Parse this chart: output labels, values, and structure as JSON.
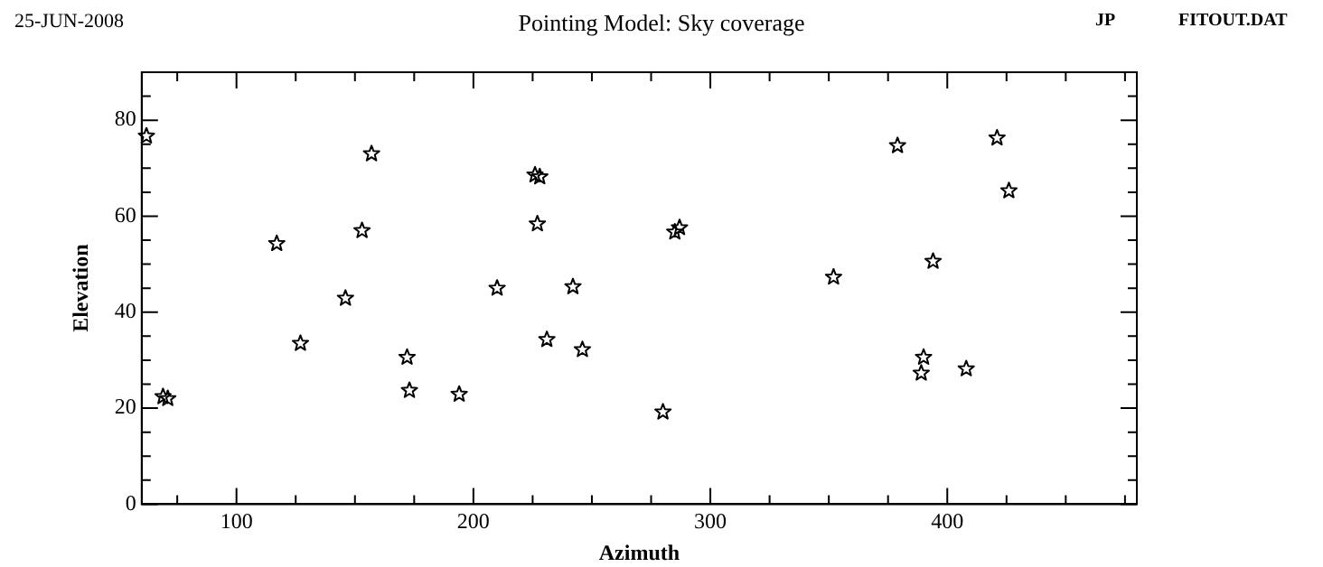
{
  "chart_data": {
    "type": "scatter",
    "title": "Pointing Model: Sky coverage",
    "xlabel": "Azimuth",
    "ylabel": "Elevation",
    "annotations": [
      "25-JUN-2008",
      "JP",
      "FITOUT.DAT"
    ],
    "x": [
      62,
      69,
      71,
      117,
      127,
      146,
      153,
      157,
      172,
      173,
      194,
      210,
      227,
      226,
      228,
      231,
      242,
      246,
      280,
      285,
      287,
      352,
      379,
      394,
      390,
      389,
      408,
      421,
      426
    ],
    "series": [
      {
        "color": "#000000",
        "values": [
          76.7,
          22.4,
          22,
          54.3,
          33.5,
          42.9,
          57,
          73,
          30.6,
          23.7,
          22.9,
          45,
          58.4,
          68.6,
          68.2,
          34.3,
          45.3,
          32.2,
          19.2,
          56.7,
          57.6,
          47.3,
          74.7,
          50.6,
          30.6,
          27.3,
          28.2,
          76.3,
          65.3
        ]
      }
    ],
    "xlim": [
      60,
      480
    ],
    "ylim": [
      0,
      90
    ],
    "xticks": [
      {
        "value": 75,
        "label": null
      },
      100,
      {
        "value": 125,
        "label": null
      },
      {
        "value": 150,
        "label": null
      },
      {
        "value": 175,
        "label": null
      },
      200,
      {
        "value": 225,
        "label": null
      },
      {
        "value": 250,
        "label": null
      },
      {
        "value": 275,
        "label": null
      },
      300,
      {
        "value": 325,
        "label": null
      },
      {
        "value": 350,
        "label": null
      },
      {
        "value": 375,
        "label": null
      },
      400,
      {
        "value": 425,
        "label": null
      },
      {
        "value": 450,
        "label": null
      },
      {
        "value": 475,
        "label": null
      }
    ],
    "yticks": [
      0,
      {
        "value": 5,
        "label": null
      },
      {
        "value": 10,
        "label": null
      },
      {
        "value": 15,
        "label": null
      },
      20,
      {
        "value": 25,
        "label": null
      },
      {
        "value": 30,
        "label": null
      },
      {
        "value": 35,
        "label": null
      },
      40,
      {
        "value": 45,
        "label": null
      },
      {
        "value": 50,
        "label": null
      },
      {
        "value": 55,
        "label": null
      },
      60,
      {
        "value": 65,
        "label": null
      },
      {
        "value": 70,
        "label": null
      },
      {
        "value": 75,
        "label": null
      },
      80,
      {
        "value": 85,
        "label": null
      }
    ],
    "marker": "star",
    "grid": false,
    "legend": false
  }
}
